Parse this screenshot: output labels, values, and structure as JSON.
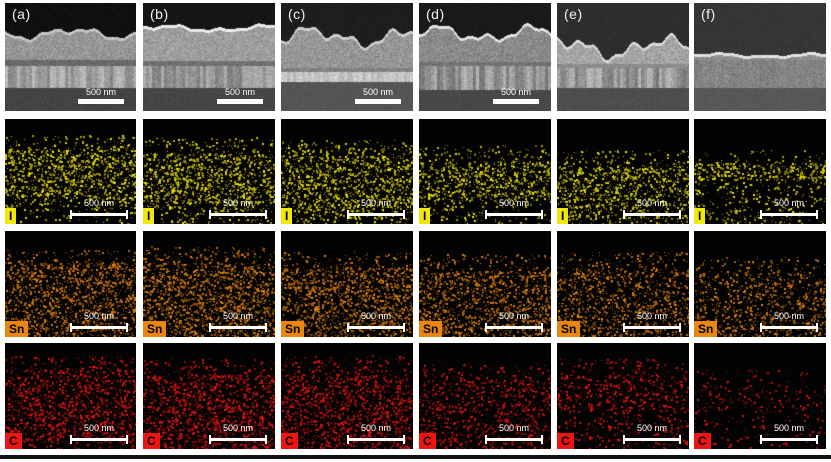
{
  "figure": {
    "panel_labels": [
      "(a)",
      "(b)",
      "(c)",
      "(d)",
      "(e)",
      "(f)"
    ],
    "scale_bar_label": "500 nm",
    "rows": [
      {
        "name": "sem-cross-section",
        "type": "sem"
      },
      {
        "name": "iodine-map",
        "type": "map",
        "element": "I",
        "color": "#f2e60a"
      },
      {
        "name": "tin-map",
        "type": "map",
        "element": "Sn",
        "color": "#e8860f"
      },
      {
        "name": "carbon-map",
        "type": "map",
        "element": "C",
        "color": "#ee1414"
      }
    ],
    "sem_scalebar_columns": [
      true,
      true,
      true,
      true,
      false,
      false
    ]
  }
}
